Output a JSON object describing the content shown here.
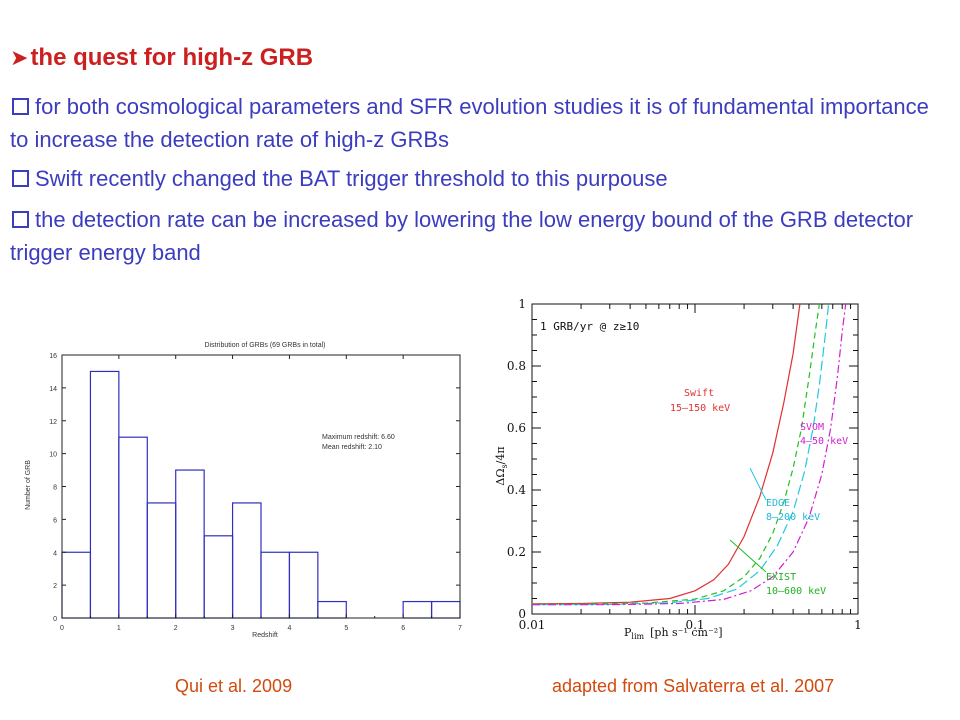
{
  "slide": {
    "heading": "the quest for high-z GRB",
    "bullets": [
      "for both cosmological parameters and SFR evolution studies it is of fundamental importance to increase the detection rate of high-z GRBs",
      "Swift recently changed the BAT trigger threshold to this purpouse",
      "the detection rate can be increased by lowering the low energy bound of the GRB detector trigger energy band"
    ],
    "captions": {
      "left": "Qui et al. 2009",
      "right": "adapted from Salvaterra et al. 2007"
    }
  },
  "chart_data": [
    {
      "type": "bar",
      "title": "Distribution of GRBs (69 GRBs in total)",
      "xlabel": "Redshift",
      "ylabel": "Number of GRB",
      "xlim": [
        0,
        7
      ],
      "ylim": [
        0,
        16
      ],
      "bin_width": 0.5,
      "bin_starts": [
        0,
        0.5,
        1,
        1.5,
        2,
        2.5,
        3,
        3.5,
        4,
        4.5,
        5,
        5.5,
        6,
        6.5
      ],
      "values": [
        4,
        15,
        11,
        7,
        9,
        5,
        7,
        4,
        4,
        1,
        0,
        0,
        1,
        1
      ],
      "x_ticks": [
        "0",
        "1",
        "2",
        "3",
        "4",
        "5",
        "6",
        "7"
      ],
      "y_ticks": [
        "0",
        "2",
        "4",
        "6",
        "8",
        "10",
        "12",
        "14",
        "16"
      ],
      "annotations": [
        "Maximum redshift: 6.60",
        "Mean redshift: 2.10"
      ],
      "color": "#3030c0"
    },
    {
      "type": "line",
      "x_scale": "log",
      "xlim": [
        0.01,
        1
      ],
      "ylim": [
        0,
        1
      ],
      "xlabel_main": "P",
      "xlabel_sub": "lim",
      "xlabel_units": "[ph s⁻¹ cm⁻²]",
      "ylabel": "ΔΩ",
      "ylabel_rest": "/4π",
      "ylabel_sub": "s",
      "x_ticks": [
        "0.01",
        "0.1",
        "1"
      ],
      "y_ticks": [
        "0",
        "0.2",
        "0.4",
        "0.6",
        "0.8",
        "1"
      ],
      "annotation": "1 GRB/yr @ z≥10",
      "series": [
        {
          "name": "Swift",
          "band": "15–150 keV",
          "color": "#e03030",
          "dash": "",
          "points": [
            [
              0.01,
              0.033
            ],
            [
              0.02,
              0.034
            ],
            [
              0.04,
              0.038
            ],
            [
              0.07,
              0.05
            ],
            [
              0.1,
              0.075
            ],
            [
              0.13,
              0.11
            ],
            [
              0.16,
              0.16
            ],
            [
              0.2,
              0.25
            ],
            [
              0.25,
              0.38
            ],
            [
              0.3,
              0.52
            ],
            [
              0.35,
              0.68
            ],
            [
              0.4,
              0.84
            ],
            [
              0.44,
              1.0
            ]
          ]
        },
        {
          "name": "EXIST",
          "band": "10–600 keV",
          "color": "#20c020",
          "dash": "6,4",
          "points": [
            [
              0.01,
              0.031
            ],
            [
              0.02,
              0.032
            ],
            [
              0.05,
              0.035
            ],
            [
              0.1,
              0.048
            ],
            [
              0.15,
              0.075
            ],
            [
              0.2,
              0.12
            ],
            [
              0.25,
              0.18
            ],
            [
              0.3,
              0.26
            ],
            [
              0.35,
              0.36
            ],
            [
              0.4,
              0.47
            ],
            [
              0.45,
              0.6
            ],
            [
              0.5,
              0.76
            ],
            [
              0.55,
              0.92
            ],
            [
              0.58,
              1.0
            ]
          ]
        },
        {
          "name": "EDGE",
          "band": "8–200 keV",
          "color": "#20c8e0",
          "dash": "10,4",
          "points": [
            [
              0.01,
              0.03
            ],
            [
              0.03,
              0.031
            ],
            [
              0.07,
              0.036
            ],
            [
              0.12,
              0.05
            ],
            [
              0.18,
              0.08
            ],
            [
              0.25,
              0.14
            ],
            [
              0.32,
              0.22
            ],
            [
              0.4,
              0.33
            ],
            [
              0.47,
              0.46
            ],
            [
              0.53,
              0.6
            ],
            [
              0.58,
              0.74
            ],
            [
              0.63,
              0.9
            ],
            [
              0.66,
              1.0
            ]
          ]
        },
        {
          "name": "SVOM",
          "band": "4–50 keV",
          "color": "#d020d0",
          "dash": "8,3,2,3",
          "points": [
            [
              0.01,
              0.03
            ],
            [
              0.03,
              0.03
            ],
            [
              0.08,
              0.034
            ],
            [
              0.15,
              0.047
            ],
            [
              0.22,
              0.075
            ],
            [
              0.3,
              0.12
            ],
            [
              0.4,
              0.2
            ],
            [
              0.5,
              0.31
            ],
            [
              0.6,
              0.45
            ],
            [
              0.68,
              0.6
            ],
            [
              0.75,
              0.77
            ],
            [
              0.8,
              0.91
            ],
            [
              0.84,
              1.0
            ]
          ]
        }
      ]
    }
  ]
}
